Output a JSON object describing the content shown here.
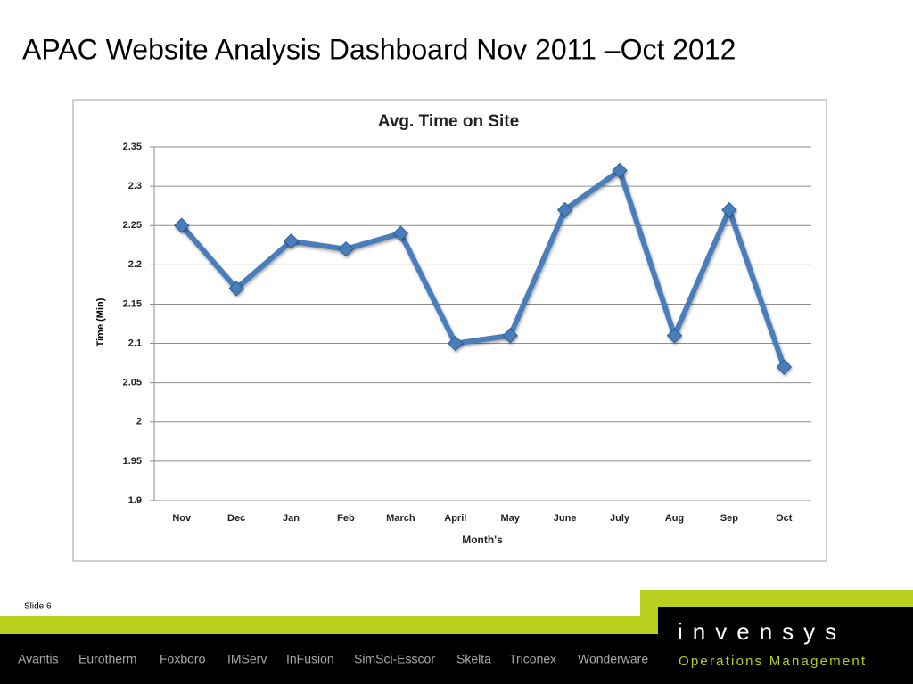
{
  "slide": {
    "title": "APAC Website Analysis Dashboard Nov 2011 –Oct 2012",
    "slide_label": "Slide 6",
    "brands": [
      "Avantis",
      "Eurotherm",
      "Foxboro",
      "IMServ",
      "InFusion",
      "SimSci-Esscor",
      "Skelta",
      "Triconex",
      "Wonderware"
    ],
    "logo": "invensys",
    "logo_tagline": "Operations Management"
  },
  "chart_data": {
    "type": "line",
    "title": "Avg. Time on Site",
    "x_label": "Month's",
    "y_label": "Time (Min)",
    "categories": [
      "Nov",
      "Dec",
      "Jan",
      "Feb",
      "March",
      "April",
      "May",
      "June",
      "July",
      "Aug",
      "Sep",
      "Oct"
    ],
    "values": [
      2.25,
      2.17,
      2.23,
      2.22,
      2.24,
      2.1,
      2.11,
      2.27,
      2.32,
      2.11,
      2.27,
      2.07
    ],
    "color": "#4a7ebb",
    "ylim": [
      1.9,
      2.35
    ],
    "yticks": [
      1.9,
      1.95,
      2,
      2.05,
      2.1,
      2.15,
      2.2,
      2.25,
      2.3,
      2.35
    ],
    "grid": true
  }
}
